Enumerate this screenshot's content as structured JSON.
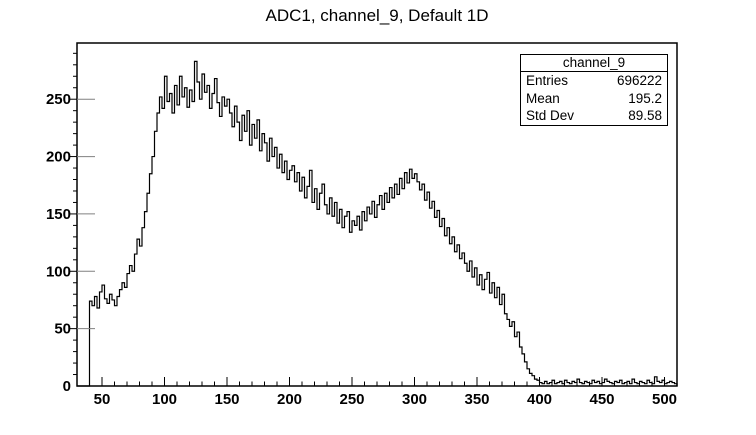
{
  "title": "ADC1, channel_9, Default 1D",
  "stats": {
    "header": "channel_9",
    "rows": [
      {
        "label": "Entries",
        "value": "696222"
      },
      {
        "label": "Mean",
        "value": "195.2"
      },
      {
        "label": "Std Dev",
        "value": "89.58"
      }
    ]
  },
  "colors": {
    "line": "#000000",
    "frame": "#000000",
    "background": "#ffffff",
    "inner_tick": "#808080"
  },
  "chart_data": {
    "type": "histogram",
    "render": "step-line",
    "title": "ADC1, channel_9, Default 1D",
    "xlabel": "",
    "ylabel": "",
    "xlim": [
      30,
      510
    ],
    "ylim": [
      0,
      299
    ],
    "grid": false,
    "legend": "none",
    "x_major_ticks": [
      50,
      100,
      150,
      200,
      250,
      300,
      350,
      400,
      450,
      500
    ],
    "y_major_ticks": [
      0,
      50,
      100,
      150,
      200,
      250
    ],
    "x_minor_step": 10,
    "y_minor_step": 10,
    "bin_start": 30,
    "bin_width": 2,
    "values": [
      0,
      0,
      0,
      0,
      0,
      74,
      70,
      78,
      68,
      82,
      88,
      76,
      72,
      80,
      75,
      70,
      78,
      84,
      90,
      86,
      98,
      105,
      100,
      115,
      128,
      122,
      138,
      152,
      168,
      185,
      200,
      222,
      238,
      252,
      242,
      270,
      248,
      255,
      238,
      262,
      245,
      270,
      252,
      260,
      243,
      258,
      248,
      283,
      265,
      250,
      272,
      256,
      262,
      242,
      255,
      268,
      247,
      235,
      252,
      244,
      250,
      238,
      226,
      244,
      230,
      214,
      236,
      222,
      240,
      210,
      228,
      216,
      232,
      205,
      220,
      212,
      196,
      216,
      200,
      208,
      190,
      202,
      186,
      196,
      180,
      188,
      192,
      178,
      186,
      170,
      182,
      164,
      174,
      188,
      160,
      172,
      154,
      168,
      176,
      158,
      150,
      164,
      148,
      160,
      142,
      154,
      138,
      148,
      152,
      134,
      144,
      140,
      148,
      136,
      152,
      144,
      156,
      150,
      161,
      147,
      158,
      166,
      154,
      168,
      160,
      173,
      164,
      176,
      167,
      181,
      172,
      186,
      177,
      189,
      181,
      185,
      178,
      171,
      176,
      162,
      169,
      155,
      161,
      147,
      153,
      139,
      146,
      131,
      138,
      124,
      130,
      117,
      123,
      111,
      116,
      107,
      100,
      109,
      95,
      103,
      88,
      97,
      84,
      93,
      99,
      81,
      90,
      77,
      86,
      71,
      80,
      63,
      58,
      52,
      56,
      43,
      47,
      34,
      28,
      21,
      15,
      11,
      9,
      6,
      5,
      3,
      2,
      4,
      2,
      3,
      5,
      2,
      3,
      4,
      2,
      5,
      3,
      2,
      4,
      3,
      6,
      3,
      2,
      4,
      3,
      2,
      5,
      3,
      4,
      2,
      3,
      6,
      4,
      3,
      2,
      4,
      3,
      5,
      2,
      3,
      4,
      2,
      6,
      3,
      2,
      4,
      3,
      2,
      5,
      3,
      2,
      8,
      4,
      3,
      5,
      2,
      3,
      4,
      3,
      2
    ]
  }
}
